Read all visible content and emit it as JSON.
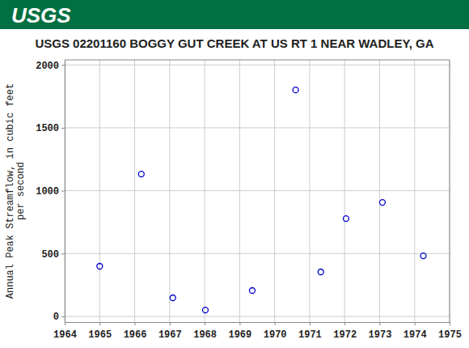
{
  "chart_data": {
    "type": "scatter",
    "logo": "USGS",
    "title": "USGS 02201160 BOGGY GUT CREEK AT US RT 1 NEAR WADLEY, GA",
    "ylabel": [
      "Annual Peak Streamflow, in cubic feet",
      "per second"
    ],
    "x": [
      1965.0,
      1966.19,
      1967.09,
      1968.02,
      1969.36,
      1970.6,
      1971.32,
      1972.04,
      1973.08,
      1974.25
    ],
    "values": [
      399,
      1132,
      148,
      51,
      206,
      1801,
      354,
      778,
      907,
      482
    ],
    "color": "#0000cc",
    "marker": "open-circle",
    "xlim": [
      1964,
      1975
    ],
    "xticks": [
      1964,
      1965,
      1966,
      1967,
      1968,
      1969,
      1970,
      1971,
      1972,
      1973,
      1974,
      1975
    ],
    "ylim": [
      -45,
      2040
    ],
    "yticks": [
      0,
      500,
      1000,
      1500,
      2000
    ],
    "grid": true
  }
}
